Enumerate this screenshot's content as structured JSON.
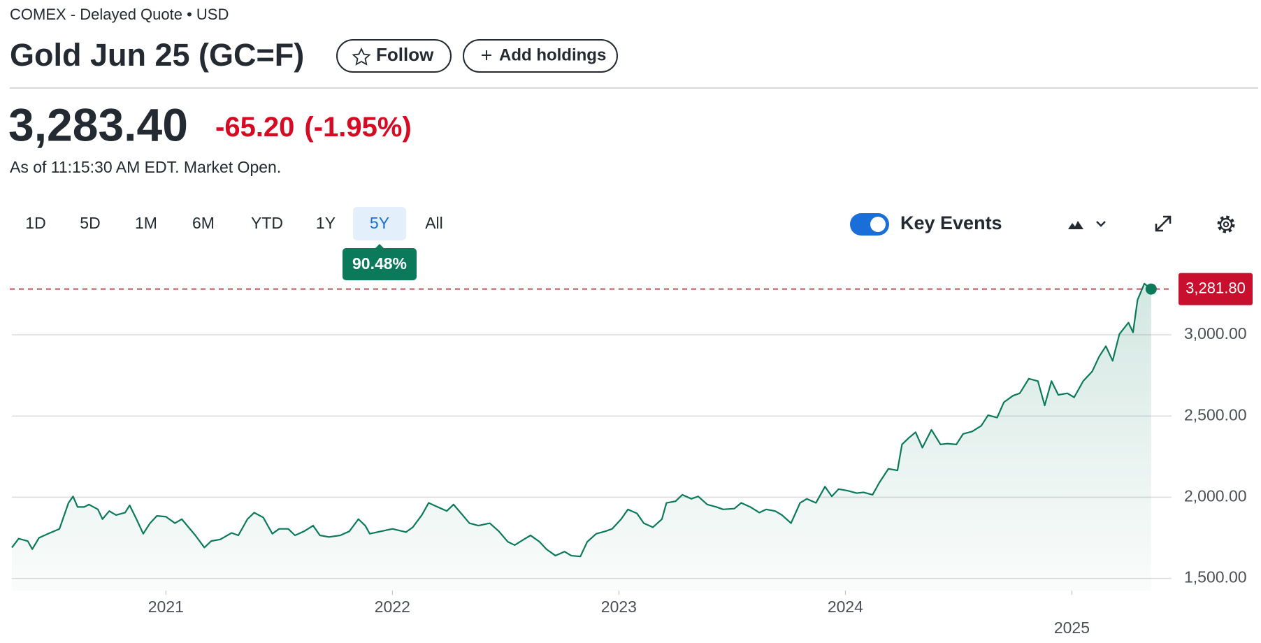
{
  "header": {
    "exchange": "COMEX - Delayed Quote • USD",
    "title": "Gold Jun 25 (GC=F)",
    "follow": "Follow",
    "add_holdings": "Add holdings"
  },
  "quote": {
    "price": "3,283.40",
    "change": "-65.20",
    "change_percent": "(-1.95%)",
    "as_of": "As of 11:15:30 AM EDT. Market Open."
  },
  "ranges": {
    "options": [
      "1D",
      "5D",
      "1M",
      "6M",
      "YTD",
      "1Y",
      "5Y",
      "All"
    ],
    "selected": "5Y",
    "return": "90.48%"
  },
  "key_events": {
    "label": "Key Events",
    "enabled": true
  },
  "chart_data": {
    "type": "line",
    "color": "#0b7a5a",
    "grid": true,
    "x": [
      2020.32,
      2020.35,
      2020.39,
      2020.41,
      2020.44,
      2020.48,
      2020.53,
      2020.57,
      2020.59,
      2020.61,
      2020.64,
      2020.66,
      2020.7,
      2020.72,
      2020.75,
      2020.78,
      2020.82,
      2020.84,
      2020.87,
      2020.9,
      2020.93,
      2020.96,
      2021.0,
      2021.04,
      2021.07,
      2021.1,
      2021.13,
      2021.17,
      2021.2,
      2021.24,
      2021.29,
      2021.32,
      2021.36,
      2021.39,
      2021.43,
      2021.47,
      2021.5,
      2021.54,
      2021.57,
      2021.61,
      2021.65,
      2021.68,
      2021.72,
      2021.77,
      2021.81,
      2021.85,
      2021.88,
      2021.9,
      2021.95,
      2022.0,
      2022.06,
      2022.09,
      2022.13,
      2022.16,
      2022.2,
      2022.24,
      2022.27,
      2022.31,
      2022.34,
      2022.38,
      2022.43,
      2022.47,
      2022.51,
      2022.54,
      2022.58,
      2022.61,
      2022.65,
      2022.68,
      2022.72,
      2022.76,
      2022.79,
      2022.83,
      2022.86,
      2022.9,
      2022.94,
      2022.97,
      2023.01,
      2023.04,
      2023.08,
      2023.11,
      2023.15,
      2023.19,
      2023.21,
      2023.25,
      2023.28,
      2023.32,
      2023.35,
      2023.39,
      2023.43,
      2023.46,
      2023.51,
      2023.54,
      2023.58,
      2023.62,
      2023.65,
      2023.69,
      2023.72,
      2023.76,
      2023.8,
      2023.83,
      2023.87,
      2023.89,
      2023.91,
      2023.94,
      2023.97,
      2024.01,
      2024.05,
      2024.08,
      2024.12,
      2024.15,
      2024.19,
      2024.23,
      2024.25,
      2024.28,
      2024.31,
      2024.34,
      2024.38,
      2024.42,
      2024.45,
      2024.49,
      2024.52,
      2024.56,
      2024.6,
      2024.63,
      2024.67,
      2024.7,
      2024.74,
      2024.77,
      2024.81,
      2024.85,
      2024.88,
      2024.91,
      2024.94,
      2024.98,
      2025.01,
      2025.05,
      2025.09,
      2025.12,
      2025.15,
      2025.18,
      2025.21,
      2025.25,
      2025.27,
      2025.29,
      2025.32,
      2025.35
    ],
    "values": [
      1690,
      1745,
      1730,
      1680,
      1750,
      1775,
      1805,
      1965,
      2005,
      1940,
      1940,
      1955,
      1925,
      1865,
      1915,
      1890,
      1905,
      1950,
      1865,
      1775,
      1840,
      1885,
      1880,
      1840,
      1865,
      1815,
      1765,
      1690,
      1730,
      1740,
      1780,
      1765,
      1865,
      1905,
      1875,
      1775,
      1805,
      1805,
      1765,
      1790,
      1825,
      1765,
      1755,
      1765,
      1790,
      1865,
      1825,
      1775,
      1790,
      1805,
      1785,
      1815,
      1890,
      1965,
      1940,
      1915,
      1955,
      1890,
      1840,
      1825,
      1840,
      1790,
      1725,
      1705,
      1740,
      1765,
      1725,
      1680,
      1640,
      1665,
      1640,
      1635,
      1725,
      1775,
      1790,
      1805,
      1865,
      1925,
      1900,
      1840,
      1815,
      1865,
      1965,
      1975,
      2015,
      1990,
      2005,
      1955,
      1940,
      1925,
      1930,
      1965,
      1940,
      1905,
      1925,
      1915,
      1890,
      1840,
      1965,
      1990,
      1965,
      2015,
      2065,
      2005,
      2050,
      2040,
      2025,
      2030,
      2015,
      2090,
      2175,
      2165,
      2325,
      2365,
      2400,
      2305,
      2415,
      2325,
      2330,
      2325,
      2390,
      2405,
      2440,
      2505,
      2490,
      2585,
      2625,
      2640,
      2730,
      2715,
      2565,
      2715,
      2630,
      2640,
      2615,
      2715,
      2775,
      2865,
      2930,
      2840,
      3005,
      3075,
      3015,
      3215,
      3315,
      3281.8
    ],
    "xlim": [
      2020.32,
      2025.44
    ],
    "xticks": [
      2021,
      2022,
      2023,
      2024,
      2025
    ],
    "ylim": [
      1425,
      3465
    ],
    "yticks": [
      {
        "value": 1500,
        "label": "1,500.00"
      },
      {
        "value": 2000,
        "label": "2,000.00"
      },
      {
        "value": 2500,
        "label": "2,500.00"
      },
      {
        "value": 3000,
        "label": "3,000.00"
      }
    ],
    "current_price": {
      "value": 3281.8,
      "label": "3,281.80"
    },
    "current_price_color": "#c8102e"
  }
}
